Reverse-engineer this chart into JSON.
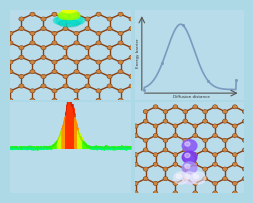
{
  "background_color": "#add8e6",
  "panel_bg": "#b8dcea",
  "nanotube_bond_color": "#8B4010",
  "nanotube_node_color": "#CD853F",
  "nanotube_node_dark": "#6B3010",
  "energy_curve_color": "#7a9abf",
  "energy_xlabel": "Diffusion distance",
  "energy_ylabel": "Energy barrier",
  "fig_width": 2.41,
  "fig_height": 1.89
}
